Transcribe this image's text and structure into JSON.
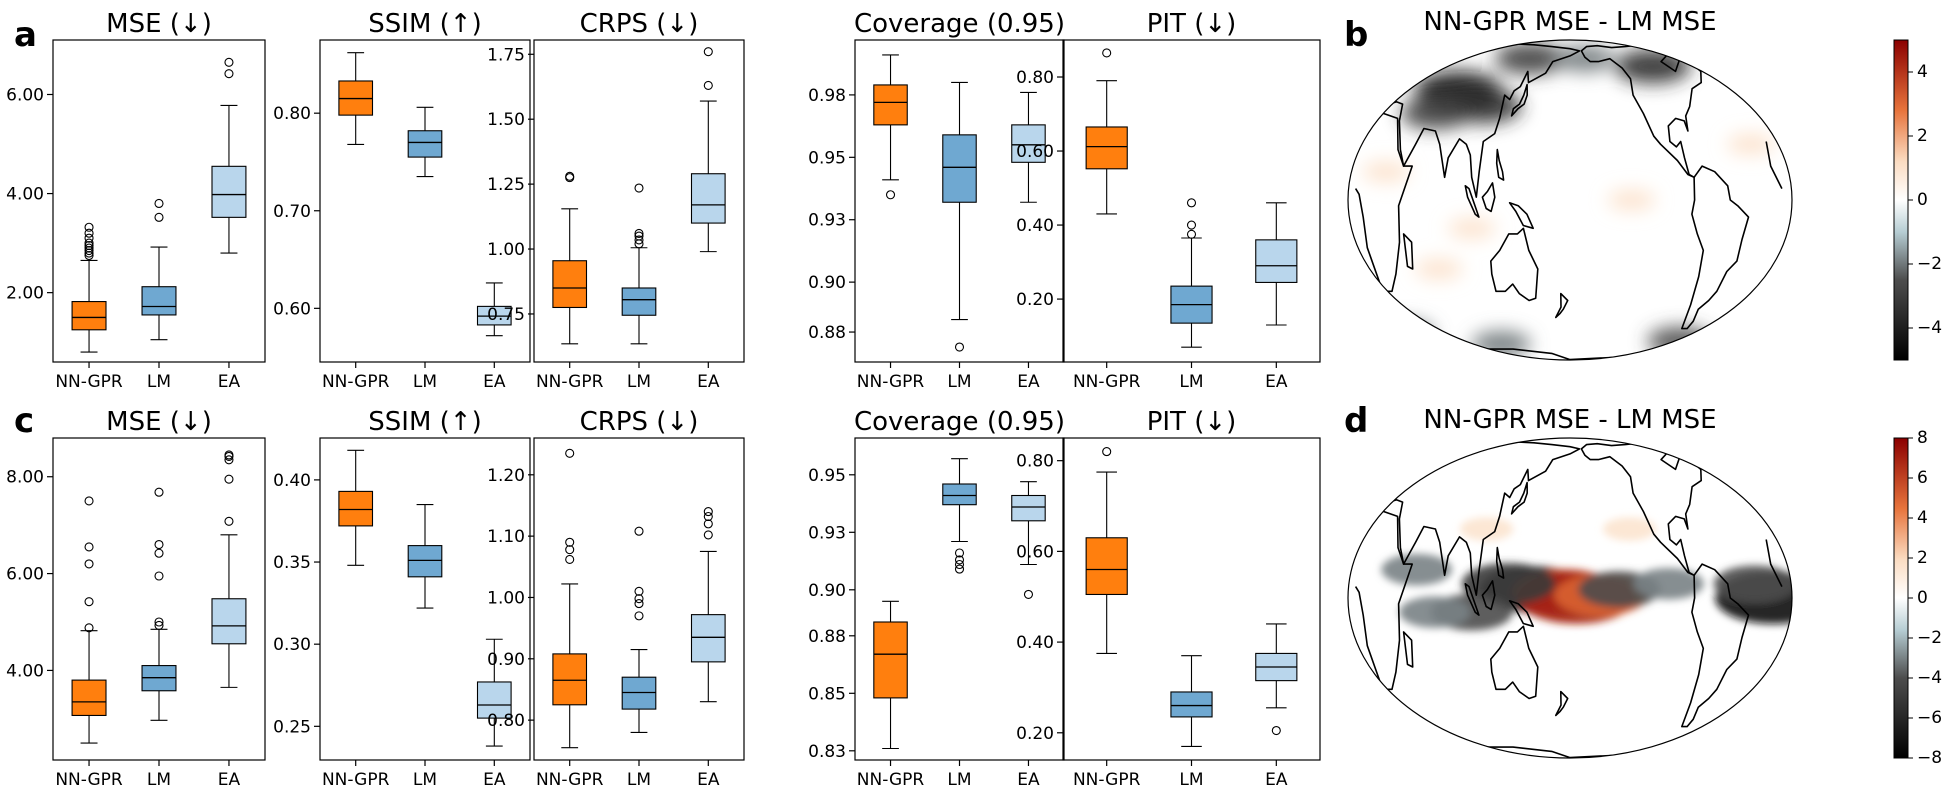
{
  "panel_letters": [
    "a",
    "b",
    "c",
    "d"
  ],
  "box_colors": {
    "NN-GPR": "#ff7f0e",
    "LM": "#6fa8d1",
    "EA": "#b9d6ec"
  },
  "chart_data": [
    {
      "type": "box",
      "row": "a",
      "title": "MSE (↓)",
      "categories": [
        "NN-GPR",
        "LM",
        "EA"
      ],
      "ylim": [
        0.6,
        7.1
      ],
      "yticks": [
        2.0,
        4.0,
        6.0
      ],
      "ytick_labels": [
        "2.00",
        "4.00",
        "6.00"
      ],
      "boxes": [
        {
          "name": "NN-GPR",
          "whislo": 0.8,
          "q1": 1.25,
          "med": 1.5,
          "q3": 1.82,
          "whishi": 2.65,
          "fliers": [
            2.75,
            2.8,
            2.85,
            2.9,
            2.95,
            3.0,
            3.1,
            3.2,
            3.32
          ]
        },
        {
          "name": "LM",
          "whislo": 1.05,
          "q1": 1.55,
          "med": 1.72,
          "q3": 2.12,
          "whishi": 2.92,
          "fliers": [
            3.52,
            3.8
          ]
        },
        {
          "name": "EA",
          "whislo": 2.8,
          "q1": 3.52,
          "med": 3.98,
          "q3": 4.55,
          "whishi": 5.78,
          "fliers": [
            6.42,
            6.65
          ]
        }
      ]
    },
    {
      "type": "box",
      "row": "a",
      "title": "SSIM (↑)",
      "categories": [
        "NN-GPR",
        "LM",
        "EA"
      ],
      "ylim": [
        0.545,
        0.875
      ],
      "yticks": [
        0.6,
        0.7,
        0.8
      ],
      "ytick_labels": [
        "0.60",
        "0.70",
        "0.80"
      ],
      "boxes": [
        {
          "name": "NN-GPR",
          "whislo": 0.768,
          "q1": 0.798,
          "med": 0.815,
          "q3": 0.833,
          "whishi": 0.862,
          "fliers": []
        },
        {
          "name": "LM",
          "whislo": 0.735,
          "q1": 0.755,
          "med": 0.77,
          "q3": 0.782,
          "whishi": 0.806,
          "fliers": []
        },
        {
          "name": "EA",
          "whislo": 0.572,
          "q1": 0.583,
          "med": 0.592,
          "q3": 0.602,
          "whishi": 0.626,
          "fliers": []
        }
      ]
    },
    {
      "type": "box",
      "row": "a",
      "title": "CRPS (↓)",
      "categories": [
        "NN-GPR",
        "LM",
        "EA"
      ],
      "ylim": [
        0.565,
        1.805
      ],
      "yticks": [
        0.75,
        1.0,
        1.25,
        1.5,
        1.75
      ],
      "ytick_labels": [
        "0.75",
        "1.00",
        "1.25",
        "1.50",
        "1.75"
      ],
      "boxes": [
        {
          "name": "NN-GPR",
          "whislo": 0.635,
          "q1": 0.775,
          "med": 0.85,
          "q3": 0.955,
          "whishi": 1.155,
          "fliers": [
            1.275,
            1.28
          ]
        },
        {
          "name": "LM",
          "whislo": 0.635,
          "q1": 0.745,
          "med": 0.805,
          "q3": 0.85,
          "whishi": 1.005,
          "fliers": [
            1.02,
            1.035,
            1.05,
            1.06,
            1.235
          ]
        },
        {
          "name": "EA",
          "whislo": 0.99,
          "q1": 1.1,
          "med": 1.17,
          "q3": 1.29,
          "whishi": 1.57,
          "fliers": [
            1.63,
            1.76
          ]
        }
      ]
    },
    {
      "type": "box",
      "row": "a",
      "title": "Coverage (0.95)",
      "categories": [
        "NN-GPR",
        "LM",
        "EA"
      ],
      "ylim": [
        0.868,
        0.997
      ],
      "yticks": [
        0.88,
        0.9,
        0.925,
        0.95,
        0.975
      ],
      "ytick_labels": [
        "0.88",
        "0.90",
        "0.93",
        "0.95",
        "0.98"
      ],
      "boxes": [
        {
          "name": "NN-GPR",
          "whislo": 0.941,
          "q1": 0.963,
          "med": 0.972,
          "q3": 0.979,
          "whishi": 0.991,
          "fliers": [
            0.935
          ]
        },
        {
          "name": "LM",
          "whislo": 0.885,
          "q1": 0.932,
          "med": 0.946,
          "q3": 0.959,
          "whishi": 0.98,
          "fliers": [
            0.874
          ]
        },
        {
          "name": "EA",
          "whislo": 0.932,
          "q1": 0.948,
          "med": 0.955,
          "q3": 0.963,
          "whishi": 0.976,
          "fliers": []
        }
      ]
    },
    {
      "type": "box",
      "row": "a",
      "title": "PIT (↓)",
      "categories": [
        "NN-GPR",
        "LM",
        "EA"
      ],
      "ylim": [
        0.03,
        0.9
      ],
      "yticks": [
        0.2,
        0.4,
        0.6,
        0.8
      ],
      "ytick_labels": [
        "0.20",
        "0.40",
        "0.60",
        "0.80"
      ],
      "boxes": [
        {
          "name": "NN-GPR",
          "whislo": 0.43,
          "q1": 0.552,
          "med": 0.612,
          "q3": 0.665,
          "whishi": 0.79,
          "fliers": [
            0.865
          ]
        },
        {
          "name": "LM",
          "whislo": 0.07,
          "q1": 0.135,
          "med": 0.185,
          "q3": 0.235,
          "whishi": 0.365,
          "fliers": [
            0.375,
            0.4,
            0.46
          ]
        },
        {
          "name": "EA",
          "whislo": 0.13,
          "q1": 0.245,
          "med": 0.29,
          "q3": 0.36,
          "whishi": 0.46,
          "fliers": []
        }
      ]
    },
    {
      "type": "map",
      "row": "b",
      "title": "NN-GPR MSE - LM MSE",
      "colorbar": {
        "ticks": [
          4,
          2,
          0,
          -2,
          -4
        ],
        "tick_labels": [
          "4",
          "2",
          "0",
          "−2",
          "−4"
        ],
        "vmin": -5,
        "vmax": 5
      },
      "hotspots": [
        {
          "lon": 80,
          "lat": 42,
          "value": -4.5
        },
        {
          "lon": 105,
          "lat": 35,
          "value": -3.5
        },
        {
          "lon": 140,
          "lat": 60,
          "value": -3
        },
        {
          "lon": -100,
          "lat": 55,
          "value": -3.5
        },
        {
          "lon": -165,
          "lat": 60,
          "value": -2
        },
        {
          "lon": 65,
          "lat": 32,
          "value": -3
        },
        {
          "lon": -70,
          "lat": -60,
          "value": -2.5
        },
        {
          "lon": 20,
          "lat": -55,
          "value": -2
        },
        {
          "lon": 0,
          "lat": -62,
          "value": -2
        },
        {
          "lon": 110,
          "lat": -62,
          "value": -2
        },
        {
          "lon": 30,
          "lat": 10,
          "value": 1
        },
        {
          "lon": 100,
          "lat": -10,
          "value": 1
        },
        {
          "lon": -130,
          "lat": 0,
          "value": 1
        },
        {
          "lon": 70,
          "lat": -25,
          "value": 1
        },
        {
          "lon": -30,
          "lat": 20,
          "value": 1
        }
      ]
    },
    {
      "type": "box",
      "row": "c",
      "title": "MSE (↓)",
      "categories": [
        "NN-GPR",
        "LM",
        "EA"
      ],
      "ylim": [
        2.15,
        8.8
      ],
      "yticks": [
        4.0,
        6.0,
        8.0
      ],
      "ytick_labels": [
        "4.00",
        "6.00",
        "8.00"
      ],
      "boxes": [
        {
          "name": "NN-GPR",
          "whislo": 2.5,
          "q1": 3.07,
          "med": 3.35,
          "q3": 3.8,
          "whishi": 4.82,
          "fliers": [
            4.88,
            5.42,
            6.2,
            6.55,
            7.5
          ]
        },
        {
          "name": "LM",
          "whislo": 2.97,
          "q1": 3.58,
          "med": 3.85,
          "q3": 4.1,
          "whishi": 4.85,
          "fliers": [
            4.93,
            5.0,
            5.95,
            6.42,
            6.6,
            7.68
          ]
        },
        {
          "name": "EA",
          "whislo": 3.65,
          "q1": 4.55,
          "med": 4.92,
          "q3": 5.48,
          "whishi": 6.8,
          "fliers": [
            7.08,
            7.95,
            8.35,
            8.42,
            8.45
          ]
        }
      ]
    },
    {
      "type": "box",
      "row": "c",
      "title": "SSIM (↑)",
      "categories": [
        "NN-GPR",
        "LM",
        "EA"
      ],
      "ylim": [
        0.2295,
        0.4255
      ],
      "yticks": [
        0.25,
        0.3,
        0.35,
        0.4
      ],
      "ytick_labels": [
        "0.25",
        "0.30",
        "0.35",
        "0.40"
      ],
      "boxes": [
        {
          "name": "NN-GPR",
          "whislo": 0.348,
          "q1": 0.372,
          "med": 0.382,
          "q3": 0.393,
          "whishi": 0.418,
          "fliers": []
        },
        {
          "name": "LM",
          "whislo": 0.322,
          "q1": 0.341,
          "med": 0.351,
          "q3": 0.36,
          "whishi": 0.385,
          "fliers": []
        },
        {
          "name": "EA",
          "whislo": 0.238,
          "q1": 0.255,
          "med": 0.263,
          "q3": 0.277,
          "whishi": 0.303,
          "fliers": []
        }
      ]
    },
    {
      "type": "box",
      "row": "c",
      "title": "CRPS (↓)",
      "categories": [
        "NN-GPR",
        "LM",
        "EA"
      ],
      "ylim": [
        0.735,
        1.26
      ],
      "yticks": [
        0.8,
        0.9,
        1.0,
        1.1,
        1.2
      ],
      "ytick_labels": [
        "0.80",
        "0.90",
        "1.00",
        "1.10",
        "1.20"
      ],
      "boxes": [
        {
          "name": "NN-GPR",
          "whislo": 0.755,
          "q1": 0.825,
          "med": 0.865,
          "q3": 0.908,
          "whishi": 1.022,
          "fliers": [
            1.062,
            1.078,
            1.09,
            1.235
          ]
        },
        {
          "name": "LM",
          "whislo": 0.78,
          "q1": 0.818,
          "med": 0.845,
          "q3": 0.87,
          "whishi": 0.915,
          "fliers": [
            0.97,
            0.99,
            0.998,
            1.01,
            1.108
          ]
        },
        {
          "name": "EA",
          "whislo": 0.83,
          "q1": 0.895,
          "med": 0.935,
          "q3": 0.972,
          "whishi": 1.075,
          "fliers": [
            1.102,
            1.12,
            1.132,
            1.14
          ]
        }
      ]
    },
    {
      "type": "box",
      "row": "c",
      "title": "Coverage (0.95)",
      "categories": [
        "NN-GPR",
        "LM",
        "EA"
      ],
      "ylim": [
        0.826,
        0.966
      ],
      "yticks": [
        0.83,
        0.855,
        0.88,
        0.9,
        0.925,
        0.95
      ],
      "ytick_labels": [
        "0.83",
        "0.85",
        "0.88",
        "0.90",
        "0.93",
        "0.95"
      ],
      "boxes": [
        {
          "name": "NN-GPR",
          "whislo": 0.831,
          "q1": 0.853,
          "med": 0.872,
          "q3": 0.886,
          "whishi": 0.895,
          "fliers": []
        },
        {
          "name": "LM",
          "whislo": 0.921,
          "q1": 0.937,
          "med": 0.941,
          "q3": 0.946,
          "whishi": 0.957,
          "fliers": [
            0.909,
            0.911,
            0.913,
            0.916
          ]
        },
        {
          "name": "EA",
          "whislo": 0.911,
          "q1": 0.93,
          "med": 0.936,
          "q3": 0.941,
          "whishi": 0.947,
          "fliers": [
            0.898
          ]
        }
      ]
    },
    {
      "type": "box",
      "row": "c",
      "title": "PIT (↓)",
      "categories": [
        "NN-GPR",
        "LM",
        "EA"
      ],
      "ylim": [
        0.14,
        0.85
      ],
      "yticks": [
        0.2,
        0.4,
        0.6,
        0.8
      ],
      "ytick_labels": [
        "0.20",
        "0.40",
        "0.60",
        "0.80"
      ],
      "boxes": [
        {
          "name": "NN-GPR",
          "whislo": 0.375,
          "q1": 0.505,
          "med": 0.56,
          "q3": 0.63,
          "whishi": 0.775,
          "fliers": [
            0.82
          ]
        },
        {
          "name": "LM",
          "whislo": 0.17,
          "q1": 0.235,
          "med": 0.26,
          "q3": 0.29,
          "whishi": 0.37,
          "fliers": []
        },
        {
          "name": "EA",
          "whislo": 0.255,
          "q1": 0.315,
          "med": 0.345,
          "q3": 0.375,
          "whishi": 0.44,
          "fliers": [
            0.205
          ]
        }
      ]
    },
    {
      "type": "map",
      "row": "d",
      "title": "NN-GPR MSE - LM MSE",
      "colorbar": {
        "ticks": [
          8,
          6,
          4,
          2,
          0,
          -2,
          -4,
          -6,
          -8
        ],
        "tick_labels": [
          "8",
          "6",
          "4",
          "2",
          "0",
          "−2",
          "−4",
          "−6",
          "−8"
        ],
        "vmin": -8,
        "vmax": 8
      },
      "hotspots": [
        {
          "lon": 150,
          "lat": 3,
          "value": -6
        },
        {
          "lon": 175,
          "lat": 2,
          "value": 6
        },
        {
          "lon": -175,
          "lat": 0,
          "value": 7
        },
        {
          "lon": -155,
          "lat": 1,
          "value": 5
        },
        {
          "lon": -140,
          "lat": 3,
          "value": -4
        },
        {
          "lon": 130,
          "lat": 5,
          "value": -5
        },
        {
          "lon": 100,
          "lat": -5,
          "value": -4
        },
        {
          "lon": 70,
          "lat": -5,
          "value": -3
        },
        {
          "lon": -15,
          "lat": 0,
          "value": -7
        },
        {
          "lon": -30,
          "lat": 5,
          "value": -4
        },
        {
          "lon": -100,
          "lat": 5,
          "value": -3
        },
        {
          "lon": 55,
          "lat": 10,
          "value": -3
        },
        {
          "lon": -130,
          "lat": 25,
          "value": 1.5
        },
        {
          "lon": 110,
          "lat": 25,
          "value": 1.5
        }
      ]
    }
  ]
}
